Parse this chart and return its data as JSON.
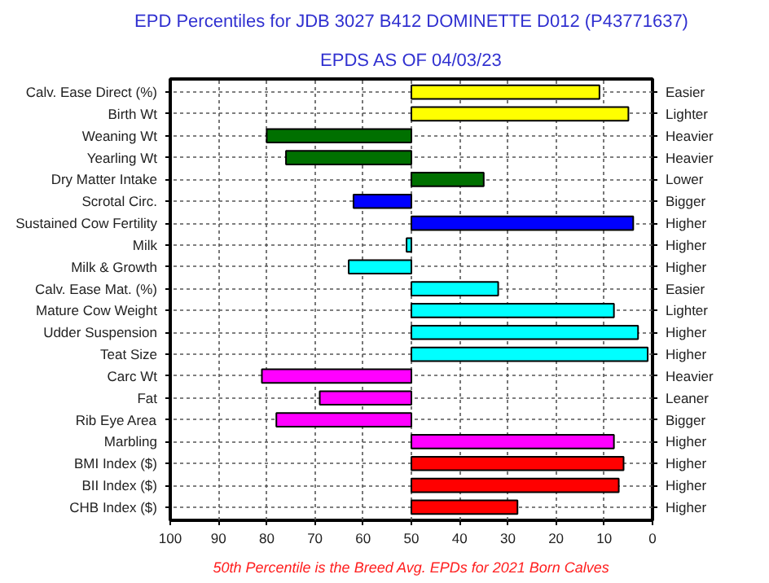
{
  "chart_data": {
    "type": "bar",
    "orientation": "horizontal",
    "title": "EPD Percentiles for JDB 3027 B412 DOMINETTE D012 (P43771637)",
    "subtitle": "EPDS AS OF 04/03/23",
    "categories": [
      "Calv. Ease Direct (%)",
      "Birth Wt",
      "Weaning Wt",
      "Yearling Wt",
      "Dry Matter Intake",
      "Scrotal Circ.",
      "Sustained Cow Fertility",
      "Milk",
      "Milk & Growth",
      "Calv. Ease Mat. (%)",
      "Mature Cow Weight",
      "Udder Suspension",
      "Teat Size",
      "Carc Wt",
      "Fat",
      "Rib Eye Area",
      "Marbling",
      "BMI Index ($)",
      "BII Index ($)",
      "CHB Index ($)"
    ],
    "y2_categories": [
      "Easier",
      "Lighter",
      "Heavier",
      "Heavier",
      "Lower",
      "Bigger",
      "Higher",
      "Higher",
      "Higher",
      "Easier",
      "Lighter",
      "Higher",
      "Higher",
      "Heavier",
      "Leaner",
      "Bigger",
      "Higher",
      "Higher",
      "Higher",
      "Higher"
    ],
    "base": [
      50,
      50,
      50,
      50,
      50,
      50,
      50,
      50,
      50,
      50,
      50,
      50,
      50,
      50,
      50,
      50,
      50,
      50,
      50,
      50
    ],
    "values": [
      -39,
      -45,
      30,
      26,
      -15,
      12,
      -46,
      1,
      13,
      -18,
      -42,
      -47,
      -49,
      31,
      19,
      28,
      -42,
      -44,
      -43,
      -22
    ],
    "colors": [
      "#ffff00",
      "#ffff00",
      "#007000",
      "#007000",
      "#007000",
      "#0000ff",
      "#0000ff",
      "#00ffff",
      "#00ffff",
      "#00ffff",
      "#00ffff",
      "#00ffff",
      "#00ffff",
      "#ff00ff",
      "#ff00ff",
      "#ff00ff",
      "#ff00ff",
      "#ff0000",
      "#ff0000",
      "#ff0000"
    ],
    "xlim": [
      100,
      0
    ],
    "xticks": [
      100,
      90,
      80,
      70,
      60,
      50,
      40,
      30,
      20,
      10,
      0
    ],
    "grid": true,
    "annotations": [
      "50th Percentile is the Breed Avg. EPDs for 2021 Born Calves"
    ]
  }
}
